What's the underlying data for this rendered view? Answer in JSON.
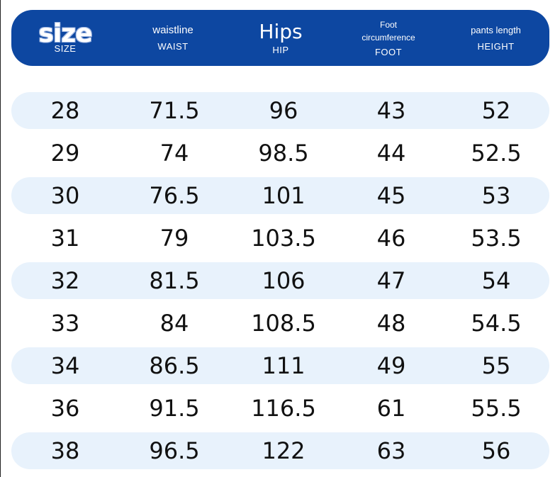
{
  "header": {
    "columns": [
      {
        "title": "size",
        "code": "SIZE"
      },
      {
        "title": "waistline",
        "code": "WAIST"
      },
      {
        "title": "Hips",
        "code": "HIP"
      },
      {
        "title": "Foot\ncircumference",
        "code": "FOOT"
      },
      {
        "title": "pants length",
        "code": "HEIGHT"
      }
    ]
  },
  "colors": {
    "header_bg": "#0d47a1",
    "row_shade": "#e8f2fc",
    "text": "#111111"
  },
  "rows": [
    [
      "28",
      "71.5",
      "96",
      "43",
      "52"
    ],
    [
      "29",
      "74",
      "98.5",
      "44",
      "52.5"
    ],
    [
      "30",
      "76.5",
      "101",
      "45",
      "53"
    ],
    [
      "31",
      "79",
      "103.5",
      "46",
      "53.5"
    ],
    [
      "32",
      "81.5",
      "106",
      "47",
      "54"
    ],
    [
      "33",
      "84",
      "108.5",
      "48",
      "54.5"
    ],
    [
      "34",
      "86.5",
      "111",
      "49",
      "55"
    ],
    [
      "36",
      "91.5",
      "116.5",
      "61",
      "55.5"
    ],
    [
      "38",
      "96.5",
      "122",
      "63",
      "56"
    ]
  ]
}
